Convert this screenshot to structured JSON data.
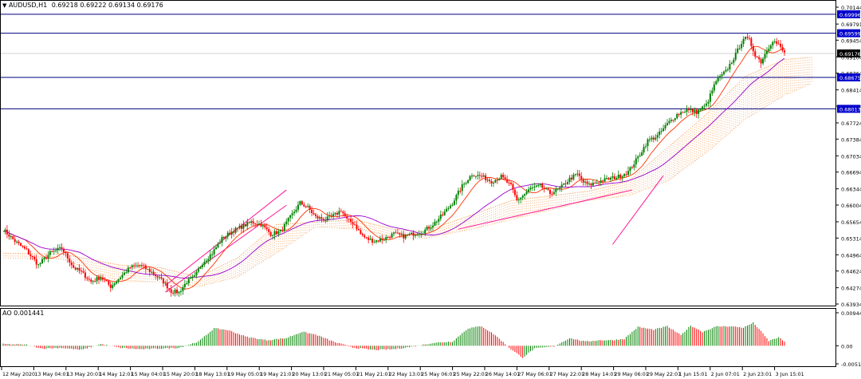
{
  "header": {
    "symbol_label": "AUDUSD,H1",
    "ohlc": "0.69218 0.69222 0.69134 0.69176"
  },
  "indicator": {
    "label": "AO 0.001441"
  },
  "colors": {
    "bull": "#008000",
    "bear": "#ff0000",
    "cloud": "#f4a460",
    "ma_fast": "#ff3300",
    "ma_slow": "#9900cc",
    "trendline": "#ff1493",
    "hline": "#000080",
    "price_tag_bg": "#000000",
    "level_tag_bg": "#0000cc"
  },
  "chart_data": {
    "type": "candlestick",
    "price_axis_ticks": [
      "0.70144",
      "0.69791",
      "0.69454",
      "0.69104",
      "0.68764",
      "0.68414",
      "0.68074",
      "0.67724",
      "0.67384",
      "0.67034",
      "0.66694",
      "0.66344",
      "0.66004",
      "0.65654",
      "0.65314",
      "0.64964",
      "0.64624",
      "0.64274",
      "0.63934"
    ],
    "ylim": [
      0.63934,
      0.70144
    ],
    "current_price": "0.69176",
    "horizontal_levels": [
      "0.69996",
      "0.69599",
      "0.68675",
      "0.68017"
    ],
    "time_axis_labels": [
      "12 May 2020",
      "13 May 04:01",
      "13 May 20:01",
      "14 May 12:01",
      "15 May 04:01",
      "15 May 20:01",
      "18 May 13:01",
      "19 May 05:01",
      "19 May 21:01",
      "20 May 13:01",
      "21 May 05:01",
      "21 May 21:01",
      "22 May 13:01",
      "25 May 06:01",
      "25 May 22:01",
      "26 May 14:01",
      "27 May 06:01",
      "27 May 22:01",
      "28 May 14:01",
      "29 May 06:01",
      "29 May 22:01",
      "1 Jun 15:01",
      "2 Jun 07:01",
      "2 Jun 23:01",
      "3 Jun 15:01"
    ],
    "ao_axis_ticks": [
      "0.009448",
      "0.00",
      "-0.00518"
    ],
    "ao_ylim": [
      -0.00518,
      0.009448
    ],
    "price_anchors": [
      [
        0,
        0.6549
      ],
      [
        6,
        0.6525
      ],
      [
        12,
        0.6505
      ],
      [
        18,
        0.6475
      ],
      [
        24,
        0.65
      ],
      [
        30,
        0.651
      ],
      [
        33,
        0.649
      ],
      [
        36,
        0.647
      ],
      [
        40,
        0.646
      ],
      [
        45,
        0.644
      ],
      [
        50,
        0.645
      ],
      [
        55,
        0.643
      ],
      [
        60,
        0.645
      ],
      [
        65,
        0.647
      ],
      [
        70,
        0.6475
      ],
      [
        76,
        0.646
      ],
      [
        82,
        0.644
      ],
      [
        86,
        0.642
      ],
      [
        90,
        0.6418
      ],
      [
        94,
        0.644
      ],
      [
        98,
        0.645
      ],
      [
        102,
        0.648
      ],
      [
        107,
        0.65
      ],
      [
        112,
        0.653
      ],
      [
        117,
        0.6545
      ],
      [
        122,
        0.6555
      ],
      [
        127,
        0.6565
      ],
      [
        132,
        0.656
      ],
      [
        137,
        0.654
      ],
      [
        142,
        0.6545
      ],
      [
        147,
        0.6575
      ],
      [
        152,
        0.6605
      ],
      [
        156,
        0.6595
      ],
      [
        160,
        0.6575
      ],
      [
        165,
        0.657
      ],
      [
        170,
        0.658
      ],
      [
        173,
        0.659
      ],
      [
        176,
        0.657
      ],
      [
        180,
        0.656
      ],
      [
        183,
        0.654
      ],
      [
        186,
        0.653
      ],
      [
        190,
        0.6525
      ],
      [
        195,
        0.653
      ],
      [
        200,
        0.654
      ],
      [
        205,
        0.6535
      ],
      [
        210,
        0.654
      ],
      [
        215,
        0.6545
      ],
      [
        220,
        0.656
      ],
      [
        225,
        0.658
      ],
      [
        230,
        0.6605
      ],
      [
        235,
        0.664
      ],
      [
        240,
        0.6665
      ],
      [
        245,
        0.666
      ],
      [
        250,
        0.665
      ],
      [
        255,
        0.666
      ],
      [
        260,
        0.664
      ],
      [
        263,
        0.661
      ],
      [
        266,
        0.662
      ],
      [
        270,
        0.6635
      ],
      [
        275,
        0.664
      ],
      [
        280,
        0.6625
      ],
      [
        285,
        0.6635
      ],
      [
        290,
        0.6655
      ],
      [
        294,
        0.6665
      ],
      [
        297,
        0.6648
      ],
      [
        300,
        0.6642
      ],
      [
        305,
        0.665
      ],
      [
        310,
        0.6655
      ],
      [
        315,
        0.666
      ],
      [
        320,
        0.667
      ],
      [
        325,
        0.67
      ],
      [
        330,
        0.6735
      ],
      [
        335,
        0.6745
      ],
      [
        340,
        0.677
      ],
      [
        345,
        0.679
      ],
      [
        350,
        0.68
      ],
      [
        355,
        0.6795
      ],
      [
        360,
        0.681
      ],
      [
        365,
        0.686
      ],
      [
        370,
        0.688
      ],
      [
        375,
        0.6915
      ],
      [
        379,
        0.695
      ],
      [
        382,
        0.6945
      ],
      [
        385,
        0.6915
      ],
      [
        388,
        0.69
      ],
      [
        391,
        0.6925
      ],
      [
        394,
        0.6945
      ],
      [
        397,
        0.6935
      ],
      [
        400,
        0.6918
      ]
    ],
    "ao_anchors": [
      [
        0,
        0.0005
      ],
      [
        12,
        0.0003
      ],
      [
        20,
        -0.0008
      ],
      [
        30,
        -0.0006
      ],
      [
        40,
        -0.0012
      ],
      [
        50,
        0.0005
      ],
      [
        60,
        -0.0006
      ],
      [
        70,
        -0.001
      ],
      [
        80,
        -0.0008
      ],
      [
        90,
        -0.0006
      ],
      [
        100,
        0.0012
      ],
      [
        108,
        0.005
      ],
      [
        115,
        0.0045
      ],
      [
        125,
        0.0025
      ],
      [
        135,
        0.0016
      ],
      [
        145,
        0.0022
      ],
      [
        153,
        0.004
      ],
      [
        160,
        0.0032
      ],
      [
        170,
        0.001
      ],
      [
        180,
        -0.0006
      ],
      [
        190,
        -0.0012
      ],
      [
        200,
        -0.001
      ],
      [
        210,
        -0.0002
      ],
      [
        220,
        0.0008
      ],
      [
        230,
        0.0012
      ],
      [
        238,
        0.005
      ],
      [
        245,
        0.0056
      ],
      [
        252,
        0.003
      ],
      [
        260,
        -0.001
      ],
      [
        266,
        -0.0034
      ],
      [
        272,
        -0.0008
      ],
      [
        282,
        -0.0002
      ],
      [
        290,
        0.0022
      ],
      [
        298,
        0.0012
      ],
      [
        305,
        0.0016
      ],
      [
        312,
        0.0016
      ],
      [
        318,
        0.002
      ],
      [
        325,
        0.0054
      ],
      [
        333,
        0.0046
      ],
      [
        340,
        0.0056
      ],
      [
        347,
        0.003
      ],
      [
        352,
        0.0058
      ],
      [
        358,
        0.004
      ],
      [
        365,
        0.0055
      ],
      [
        372,
        0.0056
      ],
      [
        379,
        0.0052
      ],
      [
        384,
        0.0066
      ],
      [
        387,
        0.0048
      ],
      [
        392,
        0.0014
      ],
      [
        397,
        0.0024
      ],
      [
        400,
        0.0012
      ]
    ],
    "cloud_anchors": [
      [
        0,
        0.65,
        0.649
      ],
      [
        30,
        0.6498,
        0.6488
      ],
      [
        60,
        0.6475,
        0.644
      ],
      [
        80,
        0.647,
        0.644
      ],
      [
        100,
        0.645,
        0.643
      ],
      [
        120,
        0.649,
        0.645
      ],
      [
        140,
        0.656,
        0.65
      ],
      [
        160,
        0.6565,
        0.6555
      ],
      [
        180,
        0.657,
        0.655
      ],
      [
        200,
        0.655,
        0.6535
      ],
      [
        215,
        0.6545,
        0.653
      ],
      [
        240,
        0.658,
        0.655
      ],
      [
        260,
        0.661,
        0.657
      ],
      [
        280,
        0.662,
        0.659
      ],
      [
        300,
        0.663,
        0.661
      ],
      [
        320,
        0.665,
        0.662
      ],
      [
        340,
        0.672,
        0.665
      ],
      [
        360,
        0.679,
        0.671
      ],
      [
        380,
        0.687,
        0.678
      ],
      [
        400,
        0.6905,
        0.683
      ],
      [
        414,
        0.691,
        0.6855
      ]
    ]
  }
}
